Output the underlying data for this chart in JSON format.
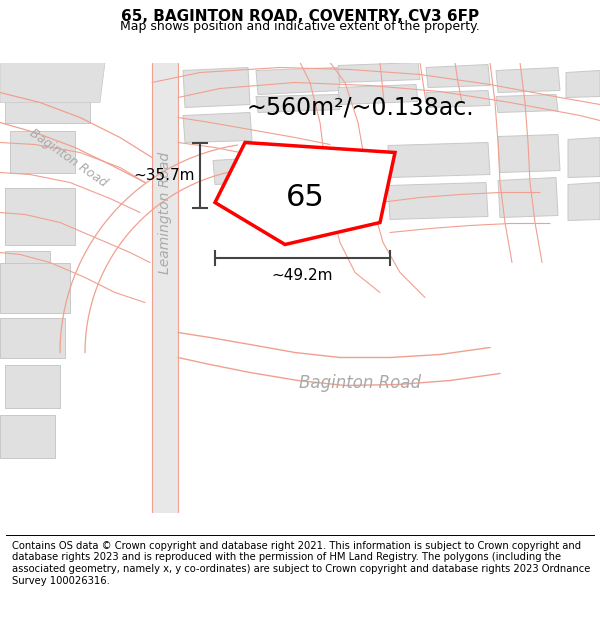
{
  "title": "65, BAGINTON ROAD, COVENTRY, CV3 6FP",
  "subtitle": "Map shows position and indicative extent of the property.",
  "footer": "Contains OS data © Crown copyright and database right 2021. This information is subject to Crown copyright and database rights 2023 and is reproduced with the permission of HM Land Registry. The polygons (including the associated geometry, namely x, y co-ordinates) are subject to Crown copyright and database rights 2023 Ordnance Survey 100026316.",
  "map_bg": "#ffffff",
  "road_band_color": "#e8e8e8",
  "road_line_color": "#f0a090",
  "building_color": "#e0e0e0",
  "building_edge": "#c8c8c8",
  "road_label_color": "#aaaaaa",
  "highlight_color": "#ff0000",
  "highlight_fill": "#ffffff",
  "dim_color": "#444444",
  "area_text": "~560m²/~0.138ac.",
  "label_65": "65",
  "dim_height_label": "~35.7m",
  "dim_width_label": "~49.2m",
  "leamington_road_label": "Leamington Road",
  "baginton_road_label": "Baginton Road",
  "title_fontsize": 11,
  "subtitle_fontsize": 9,
  "footer_fontsize": 7.2,
  "area_fontsize": 17,
  "label_fontsize": 22,
  "dim_fontsize": 11,
  "road_label_fontsize": 10,
  "baginton_label_fontsize": 12
}
